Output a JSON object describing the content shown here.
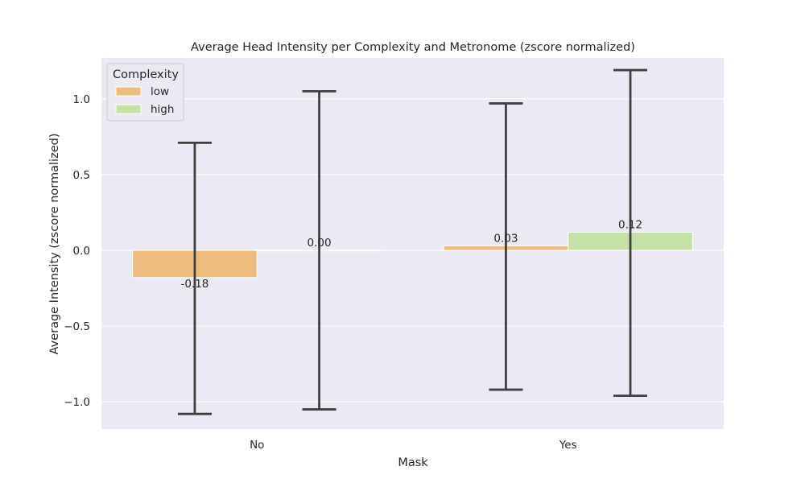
{
  "chart_data": {
    "type": "bar",
    "title": "Average Head Intensity per Complexity and Metronome (zscore normalized)",
    "xlabel": "Mask",
    "ylabel": "Average Intensity (zscore normalized)",
    "categories": [
      "No",
      "Yes"
    ],
    "ylim": [
      -1.18,
      1.27
    ],
    "yticks": [
      -1.0,
      -0.5,
      0.0,
      0.5,
      1.0
    ],
    "ytick_labels": [
      "−1.0",
      "−0.5",
      "0.0",
      "0.5",
      "1.0"
    ],
    "grid": true,
    "legend": {
      "title": "Complexity",
      "placement": "top-left"
    },
    "series": [
      {
        "name": "low",
        "color": "#edbd80",
        "values": [
          -0.18,
          0.03
        ],
        "labels": [
          "-0.18",
          "0.03"
        ],
        "err_low": [
          -1.08,
          -0.92
        ],
        "err_high": [
          0.71,
          0.97
        ]
      },
      {
        "name": "high",
        "color": "#c4e2a6",
        "values": [
          0.0,
          0.12
        ],
        "labels": [
          "0.00",
          "0.12"
        ],
        "err_low": [
          -1.05,
          -0.96
        ],
        "err_high": [
          1.05,
          1.19
        ]
      }
    ]
  }
}
